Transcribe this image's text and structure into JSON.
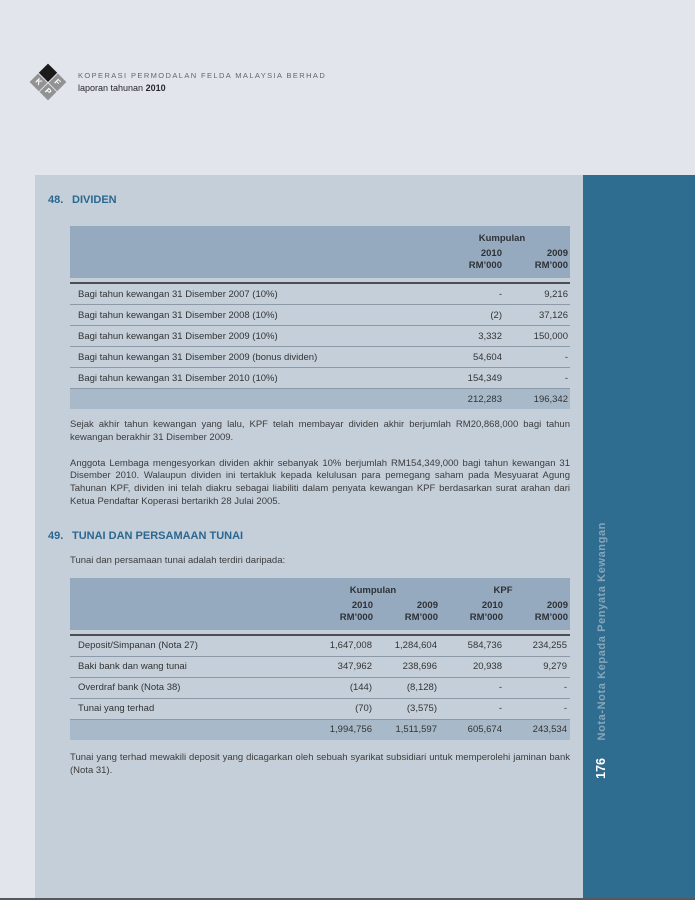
{
  "header": {
    "company_name": "KOPERASI PERMODALAN FELDA MALAYSIA BERHAD",
    "report_label": "laporan tahunan",
    "report_year": "2010",
    "logo_letters": {
      "k": "K",
      "p": "P",
      "f": "F"
    }
  },
  "section48": {
    "number": "48.",
    "title": "DIVIDEN",
    "table": {
      "group_header": "Kumpulan",
      "columns": [
        {
          "year": "2010",
          "unit": "RM’000"
        },
        {
          "year": "2009",
          "unit": "RM’000"
        }
      ],
      "rows": [
        {
          "label": "Bagi tahun kewangan 31 Disember 2007 (10%)",
          "y2010": "-",
          "y2009": "9,216"
        },
        {
          "label": "Bagi tahun kewangan 31 Disember 2008 (10%)",
          "y2010": "(2)",
          "y2009": "37,126"
        },
        {
          "label": "Bagi tahun kewangan 31 Disember 2009 (10%)",
          "y2010": "3,332",
          "y2009": "150,000"
        },
        {
          "label": "Bagi tahun kewangan 31 Disember 2009 (bonus dividen)",
          "y2010": "54,604",
          "y2009": "-"
        },
        {
          "label": "Bagi tahun kewangan 31 Disember 2010 (10%)",
          "y2010": "154,349",
          "y2009": "-"
        }
      ],
      "total": {
        "y2010": "212,283",
        "y2009": "196,342"
      }
    },
    "para1": "Sejak akhir tahun kewangan yang lalu, KPF telah membayar dividen akhir berjumlah RM20,868,000 bagi tahun kewangan berakhir 31 Disember 2009.",
    "para2": "Anggota Lembaga mengesyorkan dividen akhir sebanyak 10% berjumlah RM154,349,000 bagi tahun kewangan 31 Disember 2010. Walaupun dividen ini tertakluk kepada kelulusan para pemegang saham pada Mesyuarat Agung Tahunan KPF, dividen ini telah diakru sebagai liabiliti dalam penyata kewangan KPF berdasarkan surat arahan dari Ketua Pendaftar Koperasi bertarikh 28 Julai 2005."
  },
  "section49": {
    "number": "49.",
    "title": "TUNAI DAN PERSAMAAN TUNAI",
    "intro": "Tunai dan persamaan tunai adalah terdiri daripada:",
    "table": {
      "group_headers": [
        "Kumpulan",
        "KPF"
      ],
      "columns": [
        {
          "year": "2010",
          "unit": "RM’000"
        },
        {
          "year": "2009",
          "unit": "RM’000"
        },
        {
          "year": "2010",
          "unit": "RM’000"
        },
        {
          "year": "2009",
          "unit": "RM’000"
        }
      ],
      "rows": [
        {
          "label": "Deposit/Simpanan (Nota 27)",
          "c1": "1,647,008",
          "c2": "1,284,604",
          "c3": "584,736",
          "c4": "234,255"
        },
        {
          "label": "Baki bank dan wang tunai",
          "c1": "347,962",
          "c2": "238,696",
          "c3": "20,938",
          "c4": "9,279"
        },
        {
          "label": "Overdraf bank (Nota 38)",
          "c1": "(144)",
          "c2": "(8,128)",
          "c3": "-",
          "c4": "-"
        },
        {
          "label": "Tunai yang terhad",
          "c1": "(70)",
          "c2": "(3,575)",
          "c3": "-",
          "c4": "-"
        }
      ],
      "total": {
        "c1": "1,994,756",
        "c2": "1,511,597",
        "c3": "605,674",
        "c4": "243,534"
      }
    },
    "para": "Tunai yang terhad mewakili deposit yang dicagarkan oleh sebuah syarikat subsidiari untuk memperolehi jaminan bank (Nota 31)."
  },
  "sidebar": {
    "label": "Nota-Nota Kepada Penyata Kewangan",
    "page_number": "176"
  },
  "colors": {
    "page_background": "#e2e5ec",
    "panel_background": "#c5cfd9",
    "table_header_background": "#96aabf",
    "table_total_background": "#a8bac9",
    "sidebar_background": "#2e6d8f",
    "heading_blue": "#2a6791"
  }
}
